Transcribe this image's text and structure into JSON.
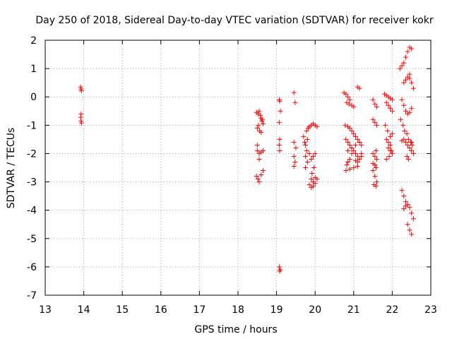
{
  "chart_data": {
    "type": "scatter",
    "title": "Day 250 of 2018, Sidereal Day-to-day VTEC variation (SDTVAR) for receiver kokr",
    "xlabel": "GPS time / hours",
    "ylabel": "SDTVAR / TECUs",
    "xlim": [
      13,
      23
    ],
    "ylim": [
      -7,
      2
    ],
    "xticks": [
      "13",
      "14",
      "15",
      "16",
      "17",
      "18",
      "19",
      "20",
      "21",
      "22",
      "23"
    ],
    "yticks": [
      "2",
      "1",
      "0",
      "-1",
      "-2",
      "-3",
      "-4",
      "-5",
      "-6",
      "-7"
    ],
    "grid": true,
    "marker": "+",
    "series": [
      {
        "name": "SDTVAR",
        "color": "#ff0000",
        "x": [
          13.92,
          13.93,
          13.94,
          13.93,
          13.92,
          13.93,
          13.94,
          18.48,
          18.52,
          18.55,
          18.58,
          18.6,
          18.62,
          18.65,
          18.5,
          18.53,
          18.56,
          18.6,
          18.63,
          18.5,
          18.55,
          18.6,
          18.65,
          18.48,
          18.52,
          18.55,
          18.6,
          18.65,
          18.5,
          18.55,
          19.07,
          19.08,
          19.1,
          19.07,
          19.08,
          19.07,
          19.08,
          19.1,
          19.08,
          19.07,
          19.45,
          19.48,
          19.45,
          19.5,
          19.45,
          19.48,
          19.45,
          19.7,
          19.73,
          19.75,
          19.78,
          19.8,
          19.78,
          19.82,
          19.85,
          19.9,
          19.95,
          20.0,
          20.05,
          19.75,
          19.8,
          19.85,
          19.9,
          19.95,
          20.0,
          19.9,
          19.95,
          20.0,
          19.85,
          19.9,
          19.95,
          20.0,
          20.05,
          19.92,
          19.97,
          19.75,
          20.75,
          20.8,
          20.85,
          20.9,
          20.82,
          20.88,
          20.95,
          21.0,
          20.78,
          20.85,
          20.9,
          20.95,
          21.0,
          21.05,
          21.1,
          21.15,
          21.2,
          20.8,
          20.85,
          20.9,
          20.95,
          21.0,
          21.05,
          21.1,
          21.15,
          21.2,
          20.8,
          20.9,
          21.0,
          21.1,
          20.82,
          20.85,
          20.9,
          20.95,
          21.05,
          21.1,
          21.15,
          21.2,
          20.85,
          20.95,
          21.05,
          21.15,
          21.1,
          21.15,
          21.5,
          21.55,
          21.6,
          21.5,
          21.55,
          21.6,
          21.58,
          21.5,
          21.55,
          21.6,
          21.5,
          21.55,
          21.6,
          21.52,
          21.58,
          21.55,
          21.5,
          21.58,
          21.8,
          21.85,
          21.9,
          21.95,
          22.0,
          21.85,
          21.9,
          21.95,
          22.0,
          21.82,
          21.88,
          21.95,
          22.0,
          21.85,
          21.9,
          21.95,
          21.9,
          21.95,
          22.0,
          21.85,
          21.92,
          21.98,
          22.2,
          22.25,
          22.3,
          22.35,
          22.4,
          22.45,
          22.5,
          22.3,
          22.35,
          22.4,
          22.45,
          22.5,
          22.55,
          22.25,
          22.3,
          22.35,
          22.4,
          22.45,
          22.5,
          22.3,
          22.35,
          22.4,
          22.45,
          22.5,
          22.55,
          22.25,
          22.3,
          22.35,
          22.4,
          22.45,
          22.5,
          22.55,
          22.22,
          22.28,
          22.32,
          22.38,
          22.42,
          22.48,
          22.52,
          22.4,
          22.45,
          22.5,
          22.35,
          22.25,
          22.38,
          22.42,
          22.5,
          22.3,
          22.45
        ],
        "y": [
          0.35,
          0.28,
          0.22,
          -0.6,
          -0.72,
          -0.85,
          -0.92,
          -0.55,
          -0.6,
          -0.5,
          -0.65,
          -0.75,
          -0.85,
          -0.95,
          -1.1,
          -1.0,
          -1.2,
          -1.25,
          -0.8,
          -1.9,
          -2.0,
          -1.95,
          -1.9,
          -2.8,
          -2.9,
          -3.0,
          -2.75,
          -2.6,
          -1.7,
          -2.2,
          -0.1,
          -0.15,
          -0.5,
          -0.9,
          -1.5,
          -1.7,
          -1.9,
          -6.1,
          -6.15,
          -6.0,
          0.15,
          -0.2,
          -1.6,
          -1.8,
          -2.1,
          -2.3,
          -2.45,
          -1.4,
          -1.6,
          -1.7,
          -1.9,
          -1.5,
          -1.2,
          -1.1,
          -1.05,
          -1.0,
          -0.95,
          -1.0,
          -1.05,
          -2.1,
          -2.3,
          -2.0,
          -2.2,
          -2.1,
          -2.0,
          -2.9,
          -3.0,
          -2.85,
          -3.1,
          -3.2,
          -3.15,
          -3.05,
          -2.9,
          -2.7,
          -2.5,
          -2.5,
          0.15,
          0.1,
          0.0,
          -0.1,
          -0.2,
          -0.25,
          -0.3,
          -0.35,
          -1.0,
          -1.05,
          -1.1,
          -1.2,
          -1.3,
          -1.4,
          -1.5,
          -1.6,
          -1.7,
          -1.5,
          -1.6,
          -1.7,
          -1.8,
          -1.9,
          -2.0,
          -2.1,
          -2.2,
          -2.0,
          -2.6,
          -2.55,
          -2.5,
          -2.45,
          -2.4,
          -2.3,
          -2.2,
          -2.0,
          -2.25,
          -2.3,
          -2.2,
          -2.1,
          -1.9,
          -1.8,
          -1.7,
          -1.6,
          0.35,
          0.3,
          -0.1,
          -0.25,
          -0.35,
          -0.8,
          -0.9,
          -1.0,
          -1.9,
          -2.0,
          -2.1,
          -2.2,
          -2.6,
          -2.8,
          -3.0,
          -3.1,
          -3.15,
          -2.4,
          -2.35,
          -2.5,
          0.1,
          0.05,
          0.0,
          -0.05,
          -0.1,
          -0.2,
          -0.3,
          -0.4,
          -0.5,
          -1.0,
          -1.2,
          -1.4,
          -1.3,
          -1.5,
          -1.6,
          -1.7,
          -1.8,
          -1.9,
          -2.0,
          -2.2,
          -2.1,
          -1.9,
          1.0,
          1.1,
          1.2,
          1.4,
          1.6,
          1.75,
          1.7,
          0.5,
          0.6,
          0.7,
          0.65,
          0.5,
          0.3,
          -0.1,
          -0.3,
          -0.5,
          -0.6,
          -0.55,
          -0.4,
          -1.5,
          -1.6,
          -1.7,
          -1.8,
          -1.9,
          -2.0,
          -3.3,
          -3.5,
          -3.7,
          -3.8,
          -3.9,
          -4.1,
          -4.3,
          -0.8,
          -1.0,
          -1.2,
          -1.3,
          -1.5,
          -1.6,
          -1.7,
          -4.5,
          -4.7,
          -4.85,
          -3.85,
          -1.55,
          -2.1,
          -2.2,
          -1.6,
          -3.95,
          0.8
        ],
        "points_note": "approximate digitization of + markers"
      }
    ]
  }
}
